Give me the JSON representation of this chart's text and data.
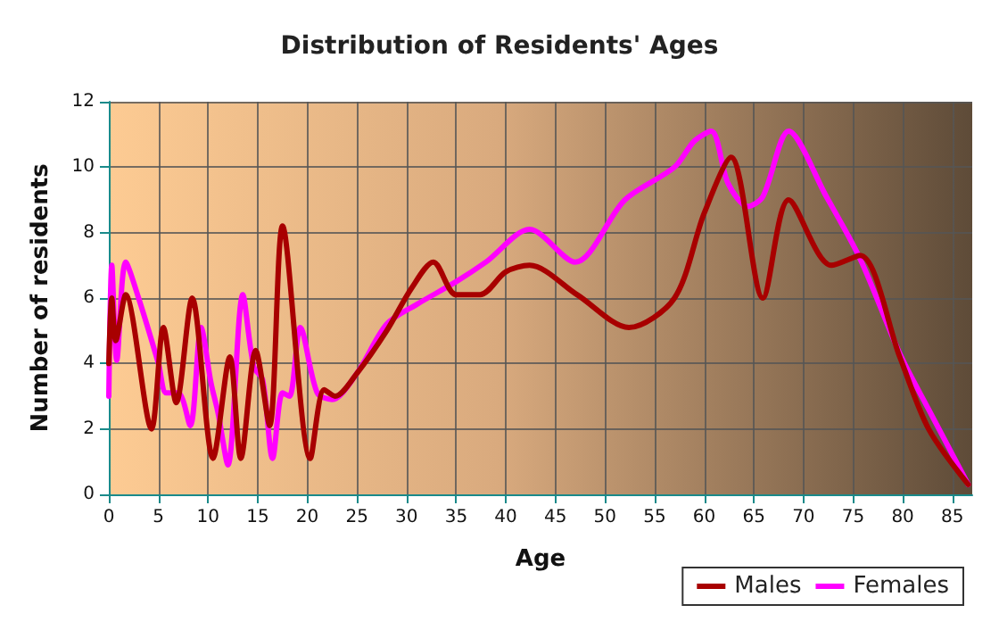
{
  "chart_data": {
    "type": "line",
    "title": "Distribution of Residents' Ages",
    "xlabel": "Age",
    "ylabel": "Number of residents",
    "xlim": [
      0,
      87
    ],
    "xticks": [
      0,
      5,
      10,
      15,
      20,
      25,
      30,
      35,
      40,
      45,
      50,
      55,
      60,
      65,
      70,
      75,
      80,
      85
    ],
    "ylim": [
      0,
      12
    ],
    "yticks": [
      0,
      2,
      4,
      6,
      8,
      10,
      12
    ],
    "grid": true,
    "legend": "bottom right",
    "marker": "none",
    "line_style": "solid",
    "series": [
      {
        "name": "Males",
        "color": "#a80000",
        "x": [
          0,
          0.3,
          0.7,
          1.7,
          4.3,
          5.5,
          6.8,
          8.4,
          10.5,
          12.2,
          13.3,
          14.8,
          16.2,
          17.5,
          20.3,
          21.7,
          22.8,
          25,
          28,
          30.5,
          32.7,
          35,
          37.4,
          40,
          42.4,
          47.2,
          52.4,
          57,
          60,
          62.7,
          65.9,
          68.5,
          72.8,
          75.7,
          79.7,
          82.6,
          86.6
        ],
        "values": [
          4,
          6,
          4.7,
          6.1,
          2,
          5.1,
          2.8,
          6,
          1.1,
          4.2,
          1.1,
          4.4,
          2.1,
          8.2,
          1.1,
          3.2,
          3,
          3.7,
          5,
          6.3,
          7.1,
          6.1,
          6.1,
          6.8,
          7,
          6.1,
          5.1,
          6,
          8.6,
          10.3,
          6,
          9,
          7,
          7.3,
          4.2,
          2,
          0.3
        ]
      },
      {
        "name": "Females",
        "color": "#ff00ff",
        "x": [
          0,
          0.3,
          0.8,
          1.7,
          3,
          5,
          5.8,
          7,
          8.2,
          9.3,
          10.3,
          11,
          12,
          13.5,
          14.6,
          15.5,
          16.5,
          17.5,
          18.2,
          19.3,
          21,
          22.5,
          25,
          28,
          31,
          35,
          38,
          42.4,
          47,
          52,
          57,
          59,
          60.7,
          62.4,
          64.4,
          65.9,
          68.5,
          72.3,
          75.7,
          79.7,
          82.6,
          86.6
        ],
        "values": [
          3,
          7,
          4.1,
          7.1,
          6,
          4,
          3.1,
          3.1,
          2.1,
          5.1,
          3.4,
          2.5,
          0.9,
          6.1,
          3.9,
          3.5,
          1.1,
          3.1,
          3,
          5.1,
          3.1,
          2.9,
          3.7,
          5.2,
          5.8,
          6.5,
          7.1,
          8.1,
          7.1,
          9,
          10,
          10.8,
          11.1,
          9.5,
          8.8,
          9.1,
          11.1,
          9.1,
          7.2,
          4.3,
          2.6,
          0.3
        ]
      }
    ]
  }
}
